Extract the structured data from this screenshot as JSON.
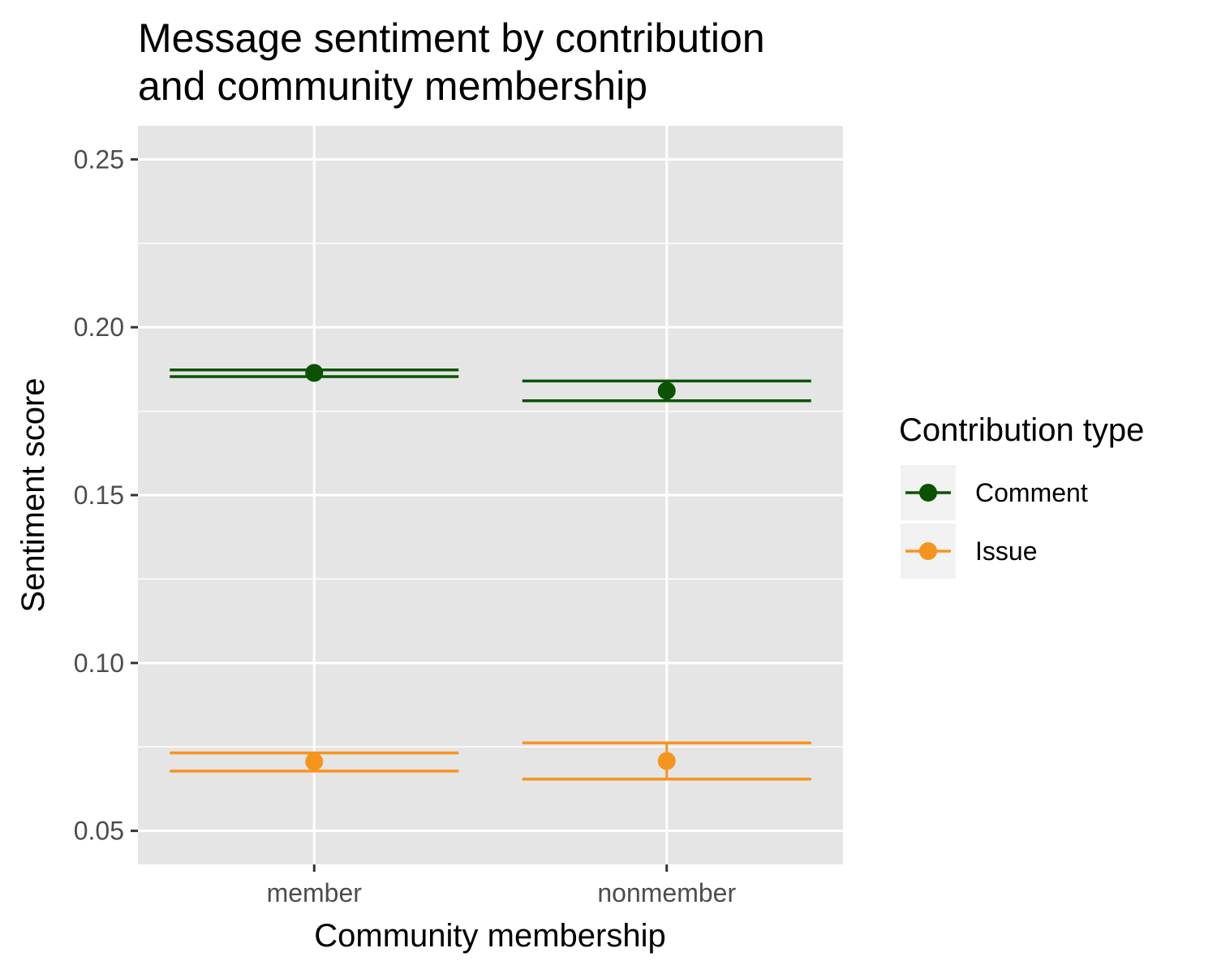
{
  "chart_data": {
    "type": "scatter",
    "title_lines": [
      "Message sentiment by contribution",
      "and community membership"
    ],
    "xlabel": "Community membership",
    "ylabel": "Sentiment score",
    "categories": [
      "member",
      "nonmember"
    ],
    "ylim": [
      0.04,
      0.26
    ],
    "yticks": [
      0.05,
      0.1,
      0.15,
      0.2,
      0.25
    ],
    "ytick_labels": [
      "0.05",
      "0.10",
      "0.15",
      "0.20",
      "0.25"
    ],
    "grid": true,
    "legend": {
      "title": "Contribution type",
      "position": "right"
    },
    "series": [
      {
        "name": "Comment",
        "color": "#0b5302",
        "points": [
          {
            "x": "member",
            "y": 0.1864,
            "lower": 0.1853,
            "upper": 0.1873
          },
          {
            "x": "nonmember",
            "y": 0.1811,
            "lower": 0.1781,
            "upper": 0.184
          }
        ]
      },
      {
        "name": "Issue",
        "color": "#f7941d",
        "points": [
          {
            "x": "member",
            "y": 0.0706,
            "lower": 0.0678,
            "upper": 0.0732
          },
          {
            "x": "nonmember",
            "y": 0.0708,
            "lower": 0.0654,
            "upper": 0.0762
          }
        ]
      }
    ]
  }
}
